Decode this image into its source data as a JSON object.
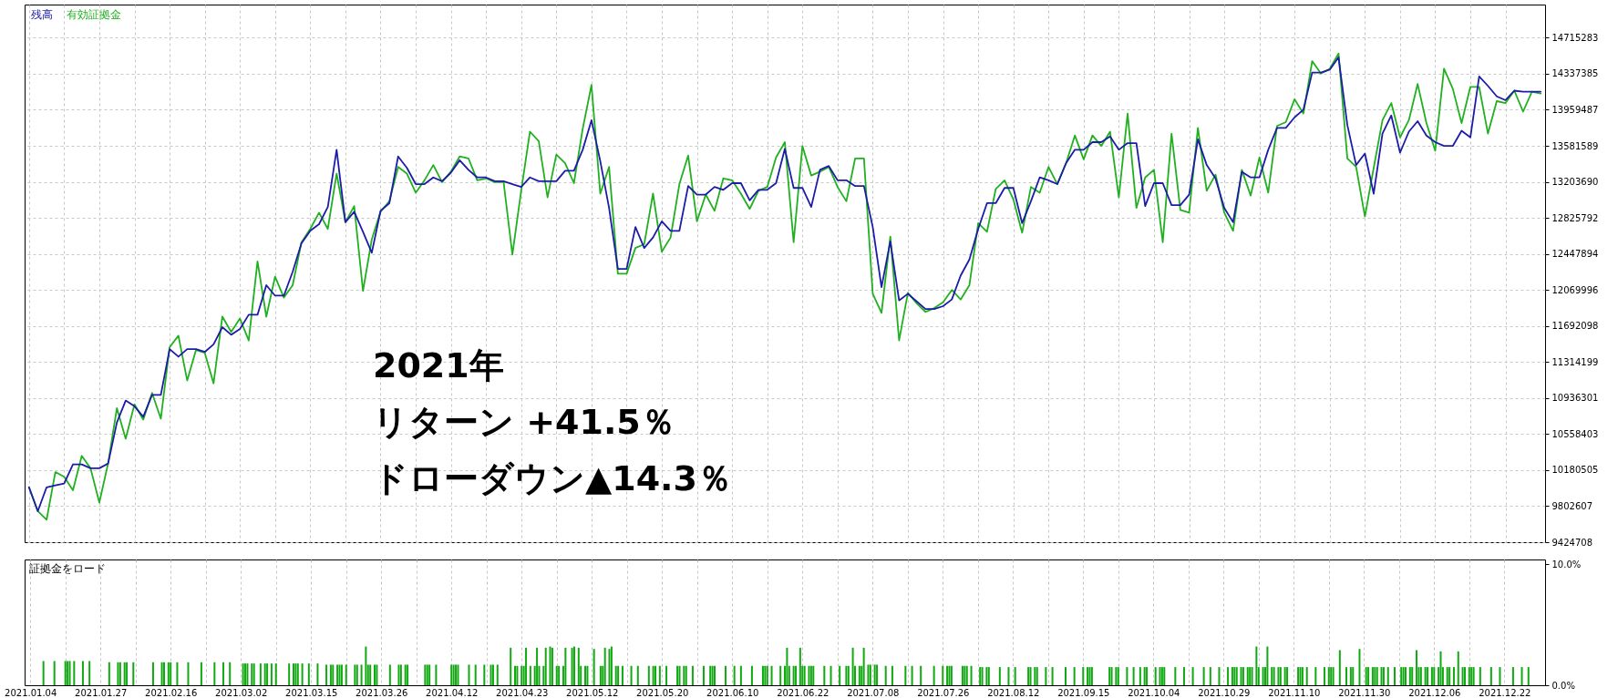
{
  "chart_data": [
    {
      "type": "line",
      "legend": "top left",
      "grid": true,
      "tick_labels": "y",
      "annotations": [
        "2021年",
        "リターン +41.5％",
        "ドローダウン▲14.3％"
      ],
      "categories": [
        "2021.01.04",
        null,
        null,
        null,
        null,
        null,
        null,
        null,
        "2021.01.27",
        null,
        null,
        null,
        null,
        null,
        null,
        null,
        "2021.02.16",
        null,
        null,
        null,
        null,
        null,
        null,
        null,
        "2021.03.02",
        null,
        null,
        null,
        null,
        null,
        null,
        null,
        "2021.03.15",
        null,
        null,
        null,
        null,
        null,
        null,
        null,
        "2021.03.26",
        null,
        null,
        null,
        null,
        null,
        null,
        null,
        "2021.04.12",
        null,
        null,
        null,
        null,
        null,
        null,
        null,
        "2021.04.23",
        null,
        null,
        null,
        null,
        null,
        null,
        null,
        "2021.05.12",
        null,
        null,
        null,
        null,
        null,
        null,
        null,
        "2021.05.20",
        null,
        null,
        null,
        null,
        null,
        null,
        null,
        "2021.06.10",
        null,
        null,
        null,
        null,
        null,
        null,
        null,
        "2021.06.22",
        null,
        null,
        null,
        null,
        null,
        null,
        null,
        "2021.07.08",
        null,
        null,
        null,
        null,
        null,
        null,
        null,
        "2021.07.26",
        null,
        null,
        null,
        null,
        null,
        null,
        null,
        "2021.08.12",
        null,
        null,
        null,
        null,
        null,
        null,
        null,
        "2021.09.15",
        null,
        null,
        null,
        null,
        null,
        null,
        null,
        "2021.10.04",
        null,
        null,
        null,
        null,
        null,
        null,
        null,
        "2021.10.29",
        null,
        null,
        null,
        null,
        null,
        null,
        null,
        "2021.11.10",
        null,
        null,
        null,
        null,
        null,
        null,
        null,
        "2021.11.30",
        null,
        null,
        null,
        null,
        null,
        null,
        null,
        "2021.12.06",
        null,
        null,
        null,
        null,
        null,
        null,
        null,
        "2021.12.22",
        null,
        null,
        null,
        null
      ],
      "ylim": [
        9424708,
        15063000
      ],
      "yticks": [
        9424708,
        9802607,
        10180505,
        10558403,
        10936301,
        11314199,
        11692098,
        12069996,
        12447894,
        12825792,
        13203690,
        13581589,
        13959487,
        14337385,
        14715283
      ],
      "series": [
        {
          "name": "残高",
          "color": "#1c1ca8",
          "values": [
            10000000,
            9750000,
            10000000,
            10020000,
            10040000,
            10240000,
            10240000,
            10200000,
            10200000,
            10250000,
            10680000,
            10910000,
            10850000,
            10740000,
            10970000,
            10970000,
            11450000,
            11370000,
            11450000,
            11450000,
            11420000,
            11500000,
            11680000,
            11600000,
            11660000,
            11810000,
            11810000,
            12120000,
            12010000,
            12010000,
            12260000,
            12560000,
            12690000,
            12760000,
            12940000,
            13540000,
            12780000,
            12890000,
            12680000,
            12460000,
            12900000,
            12980000,
            13470000,
            13350000,
            13180000,
            13180000,
            13250000,
            13210000,
            13300000,
            13430000,
            13330000,
            13250000,
            13250000,
            13210000,
            13210000,
            13180000,
            13150000,
            13250000,
            13210000,
            13210000,
            13210000,
            13320000,
            13320000,
            13540000,
            13850000,
            13420000,
            12930000,
            12290000,
            12290000,
            12730000,
            12510000,
            12620000,
            12790000,
            12690000,
            12690000,
            13160000,
            13070000,
            13070000,
            13150000,
            13120000,
            13190000,
            13190000,
            13010000,
            13120000,
            13120000,
            13190000,
            13550000,
            13140000,
            13140000,
            12940000,
            13330000,
            13370000,
            13220000,
            13220000,
            13160000,
            13160000,
            12730000,
            12100000,
            12580000,
            11960000,
            12030000,
            11950000,
            11870000,
            11870000,
            11900000,
            11970000,
            12220000,
            12390000,
            12710000,
            12980000,
            12980000,
            13140000,
            13140000,
            12770000,
            13000000,
            13250000,
            13220000,
            13180000,
            13400000,
            13540000,
            13540000,
            13620000,
            13620000,
            13680000,
            13540000,
            13610000,
            13610000,
            12950000,
            13190000,
            13190000,
            12960000,
            12960000,
            13070000,
            13650000,
            13380000,
            13240000,
            12930000,
            12780000,
            13310000,
            13250000,
            13250000,
            13540000,
            13770000,
            13770000,
            13880000,
            13960000,
            14350000,
            14350000,
            14380000,
            14510000,
            13800000,
            13380000,
            13500000,
            13080000,
            13710000,
            13900000,
            13510000,
            13730000,
            13840000,
            13690000,
            13620000,
            13580000,
            13580000,
            13740000,
            13670000,
            14310000,
            14210000,
            14100000,
            14060000,
            14160000,
            14150000,
            14150000,
            14150000
          ]
        },
        {
          "name": "有効証拠金",
          "color": "#20b020",
          "values": [
            10000000,
            9750000,
            9660000,
            10160000,
            10110000,
            9970000,
            10330000,
            10200000,
            9840000,
            10250000,
            10830000,
            10510000,
            10870000,
            10710000,
            10990000,
            10720000,
            11470000,
            11590000,
            11120000,
            11440000,
            11410000,
            11090000,
            11790000,
            11630000,
            11770000,
            11540000,
            12370000,
            11790000,
            12210000,
            11990000,
            12120000,
            12570000,
            12710000,
            12880000,
            12710000,
            13290000,
            12780000,
            12950000,
            12060000,
            12600000,
            12890000,
            13000000,
            13360000,
            13290000,
            13090000,
            13220000,
            13380000,
            13200000,
            13310000,
            13470000,
            13450000,
            13220000,
            13240000,
            13200000,
            13200000,
            12440000,
            13110000,
            13730000,
            13630000,
            13040000,
            13490000,
            13400000,
            13190000,
            13760000,
            14220000,
            13080000,
            13360000,
            12240000,
            12240000,
            12510000,
            12550000,
            13080000,
            12470000,
            12620000,
            13180000,
            13480000,
            12790000,
            13070000,
            12900000,
            13240000,
            13220000,
            13080000,
            12920000,
            13110000,
            13150000,
            13460000,
            13620000,
            12570000,
            13580000,
            13270000,
            13310000,
            13360000,
            13150000,
            13000000,
            13450000,
            13450000,
            12030000,
            11830000,
            12630000,
            11540000,
            12040000,
            11930000,
            11840000,
            11880000,
            11940000,
            12070000,
            11970000,
            12120000,
            12770000,
            12680000,
            13130000,
            13220000,
            13020000,
            12670000,
            13150000,
            13090000,
            13360000,
            13180000,
            13400000,
            13690000,
            13440000,
            13690000,
            13580000,
            13730000,
            13040000,
            13920000,
            12930000,
            13250000,
            13330000,
            12570000,
            13710000,
            12910000,
            12880000,
            13770000,
            13110000,
            13280000,
            12880000,
            12690000,
            13330000,
            13060000,
            13460000,
            13090000,
            13790000,
            13830000,
            14070000,
            13920000,
            14470000,
            14340000,
            14390000,
            14550000,
            13450000,
            13360000,
            12840000,
            13350000,
            13850000,
            14030000,
            13670000,
            13850000,
            14230000,
            13820000,
            13530000,
            14390000,
            14180000,
            13820000,
            14200000,
            14200000,
            13710000,
            14050000,
            14030000,
            14160000,
            13940000,
            14150000,
            14130000
          ]
        }
      ]
    },
    {
      "type": "bar",
      "title": "証拠金をロード",
      "color": "#12a812",
      "grid": "x",
      "categories": [
        "2021.01.04",
        null,
        null,
        null,
        null,
        null,
        null,
        null,
        null,
        null,
        null,
        null,
        null,
        null,
        null,
        null,
        null,
        null,
        null,
        null,
        null,
        null,
        null,
        null,
        null,
        null,
        null,
        null,
        null,
        null,
        null,
        null,
        "2021.01.27",
        null,
        null,
        null,
        null,
        null,
        null,
        null,
        null,
        null,
        null,
        null,
        null,
        null,
        null,
        null,
        null,
        null,
        null,
        null,
        null,
        null,
        null,
        null,
        null,
        null,
        null,
        null,
        null,
        null,
        null,
        null,
        "2021.02.16",
        null,
        null,
        null,
        null,
        null,
        null,
        null,
        null,
        null,
        null,
        null,
        null,
        null,
        null,
        null,
        null,
        null,
        null,
        null,
        null,
        null,
        null,
        null,
        null,
        null,
        null,
        null,
        null,
        null,
        null,
        null,
        "2021.03.02",
        null,
        null,
        null,
        null,
        null,
        null,
        null,
        null,
        null,
        null,
        null,
        null,
        null,
        null,
        null,
        null,
        null,
        null,
        null,
        null,
        null,
        null,
        null,
        null,
        null,
        null,
        null,
        null,
        null,
        null,
        null,
        "2021.03.15",
        null,
        null,
        null,
        null,
        null,
        null,
        null,
        null,
        null,
        null,
        null,
        null,
        null,
        null,
        null,
        null,
        null,
        null,
        null,
        null,
        null,
        null,
        null,
        null,
        null,
        null,
        null,
        null,
        null,
        null,
        null,
        "2021.03.26",
        null,
        null,
        null,
        null,
        null,
        null,
        null,
        null,
        null,
        null,
        null,
        null,
        null,
        null,
        null,
        null,
        null,
        null,
        null,
        null,
        null,
        null,
        null,
        null,
        null,
        null,
        null,
        null,
        null,
        null,
        null,
        "2021.04.12",
        null,
        null,
        null,
        null,
        null,
        null,
        null,
        null,
        null,
        null,
        null,
        null,
        null,
        null,
        null,
        null,
        null,
        null,
        null,
        null,
        null,
        null,
        null,
        null,
        null,
        null,
        null,
        null,
        null,
        null,
        null,
        "2021.04.23",
        null,
        null,
        null,
        null,
        null,
        null,
        null,
        null,
        null,
        null,
        null,
        null,
        null,
        null,
        null,
        null,
        null,
        null,
        null,
        null,
        null,
        null,
        null,
        null,
        null,
        null,
        null,
        null,
        null,
        null,
        null,
        "2021.05.12",
        null,
        null,
        null,
        null,
        null,
        null,
        null,
        null,
        null,
        null,
        null,
        null,
        null,
        null,
        null,
        null,
        null,
        null,
        null,
        null,
        null,
        null,
        null,
        null,
        null,
        null,
        null,
        null,
        null,
        null,
        null,
        "2021.05.20",
        null,
        null,
        null,
        null,
        null,
        null,
        null,
        null,
        null,
        null,
        null,
        null,
        null,
        null,
        null,
        null,
        null,
        null,
        null,
        null,
        null,
        null,
        null,
        null,
        null,
        null,
        null,
        null,
        null,
        null,
        null,
        "2021.06.10",
        null,
        null,
        null,
        null,
        null,
        null,
        null,
        null,
        null,
        null,
        null,
        null,
        null,
        null,
        null,
        null,
        null,
        null,
        null,
        null,
        null,
        null,
        null,
        null,
        null,
        null,
        null,
        null,
        null,
        null,
        null,
        "2021.06.22",
        null,
        null,
        null,
        null,
        null,
        null,
        null,
        null,
        null,
        null,
        null,
        null,
        null,
        null,
        null,
        null,
        null,
        null,
        null,
        null,
        null,
        null,
        null,
        null,
        null,
        null,
        null,
        null,
        null,
        null,
        null,
        "2021.07.08",
        null,
        null,
        null,
        null,
        null,
        null,
        null,
        null,
        null,
        null,
        null,
        null,
        null,
        null,
        null,
        null,
        null,
        null,
        null,
        null,
        null,
        null,
        null,
        null,
        null,
        null,
        null,
        null,
        null,
        null,
        null,
        "2021.07.26",
        null,
        null,
        null,
        null,
        null,
        null,
        null,
        null,
        null,
        null,
        null,
        null,
        null,
        null,
        null,
        null,
        null,
        null,
        null,
        null,
        null,
        null,
        null,
        null,
        null,
        null,
        null,
        null,
        null,
        null,
        null,
        "2021.08.12",
        null,
        null,
        null,
        null,
        null,
        null,
        null,
        null,
        null,
        null,
        null,
        null,
        null,
        null,
        null,
        null,
        null,
        null,
        null,
        null,
        null,
        null,
        null,
        null,
        null,
        null,
        null,
        null,
        null,
        null,
        null,
        "2021.09.15",
        null,
        null,
        null,
        null,
        null,
        null,
        null,
        null,
        null,
        null,
        null,
        null,
        null,
        null,
        null,
        null,
        null,
        null,
        null,
        null,
        null,
        null,
        null,
        null,
        null,
        null,
        null,
        null,
        null,
        null,
        null,
        "2021.10.04",
        null,
        null,
        null,
        null,
        null,
        null,
        null,
        null,
        null,
        null,
        null,
        null,
        null,
        null,
        null,
        null,
        null,
        null,
        null,
        null,
        null,
        null,
        null,
        null,
        null,
        null,
        null,
        null,
        null,
        null,
        null,
        "2021.10.29",
        null,
        null,
        null,
        null,
        null,
        null,
        null,
        null,
        null,
        null,
        null,
        null,
        null,
        null,
        null,
        null,
        null,
        null,
        null,
        null,
        null,
        null,
        null,
        null,
        null,
        null,
        null,
        null,
        null,
        null,
        null,
        "2021.11.10",
        null,
        null,
        null,
        null,
        null,
        null,
        null,
        null,
        null,
        null,
        null,
        null,
        null,
        null,
        null,
        null,
        null,
        null,
        null,
        null,
        null,
        null,
        null,
        null,
        null,
        null,
        null,
        null,
        null,
        null,
        null,
        "2021.11.30",
        null,
        null,
        null,
        null,
        null,
        null,
        null,
        null,
        null,
        null,
        null,
        null,
        null,
        null,
        null,
        null,
        null,
        null,
        null,
        null,
        null,
        null,
        null,
        null,
        null,
        null,
        null,
        null,
        null,
        null,
        null,
        "2021.12.06",
        null,
        null,
        null,
        null,
        null,
        null,
        null,
        null,
        null,
        null,
        null,
        null,
        null,
        null,
        null,
        null,
        null,
        null,
        null,
        null,
        null,
        null,
        null,
        null,
        null,
        null,
        null,
        null,
        null,
        null,
        null,
        "2021.12.22",
        null,
        null,
        null,
        null,
        null,
        null,
        null,
        null,
        null,
        null,
        null,
        null,
        null,
        null,
        null,
        null
      ],
      "ylim": [
        0,
        10.4
      ],
      "yticks": [
        {
          "value": 0,
          "label": "0.0%"
        },
        {
          "value": 10,
          "label": "10.0%"
        }
      ],
      "values": [
        null,
        null,
        null,
        null,
        null,
        null,
        2.0,
        null,
        null,
        null,
        null,
        2.0,
        null,
        null,
        null,
        null,
        2.0,
        2.0,
        2.0,
        null,
        2.0,
        null,
        null,
        null,
        2.0,
        null,
        null,
        2.0,
        null,
        null,
        null,
        null,
        null,
        null,
        null,
        null,
        1.9,
        null,
        null,
        null,
        1.9,
        1.9,
        null,
        1.9,
        1.9,
        null,
        null,
        1.9,
        null,
        null,
        null,
        null,
        null,
        null,
        null,
        null,
        1.9,
        null,
        null,
        null,
        1.9,
        1.9,
        null,
        1.9,
        1.9,
        null,
        null,
        1.9,
        null,
        null,
        null,
        null,
        1.9,
        null,
        null,
        null,
        null,
        null,
        1.9,
        null,
        null,
        null,
        null,
        null,
        1.9,
        null,
        null,
        null,
        1.9,
        null,
        null,
        1.9,
        null,
        null,
        null,
        null,
        null,
        1.8,
        1.8,
        1.8,
        null,
        1.8,
        1.8,
        null,
        null,
        1.8,
        null,
        1.8,
        1.8,
        null,
        1.8,
        null,
        1.8,
        null,
        null,
        null,
        null,
        null,
        1.8,
        null,
        1.8,
        1.8,
        1.8,
        null,
        1.8,
        null,
        null,
        1.8,
        null,
        null,
        null,
        1.8,
        null,
        null,
        null,
        1.7,
        null,
        1.7,
        1.7,
        null,
        1.7,
        1.7,
        1.7,
        null,
        1.7,
        null,
        null,
        null,
        1.7,
        1.7,
        null,
        1.7,
        null,
        3.2,
        1.7,
        1.7,
        null,
        1.7,
        1.7,
        null,
        null,
        null,
        null,
        null,
        1.7,
        null,
        null,
        null,
        1.7,
        1.7,
        null,
        1.7,
        1.7,
        null,
        null,
        null,
        null,
        null,
        null,
        null,
        1.7,
        1.7,
        1.7,
        null,
        null,
        1.7,
        null,
        null,
        null,
        null,
        null,
        null,
        1.7,
        1.7,
        1.7,
        1.7,
        null,
        null,
        null,
        null,
        1.7,
        null,
        null,
        1.7,
        null,
        null,
        null,
        1.7,
        null,
        null,
        1.7,
        1.7,
        null,
        1.7,
        null,
        null,
        null,
        null,
        null,
        3.1,
        null,
        1.6,
        1.6,
        null,
        1.6,
        1.6,
        3.1,
        null,
        1.6,
        null,
        1.6,
        3.1,
        1.6,
        null,
        1.6,
        3.1,
        null,
        3.2,
        3.1,
        null,
        1.6,
        1.6,
        null,
        1.6,
        3.1,
        null,
        null,
        3.1,
        3.2,
        null,
        3.1,
        1.6,
        null,
        1.6,
        1.6,
        null,
        null,
        3.0,
        null,
        null,
        1.6,
        1.6,
        3.1,
        null,
        3.0,
        3.2,
        null,
        1.6,
        1.6,
        null,
        1.6,
        null,
        null,
        null,
        1.6,
        null,
        null,
        1.6,
        null,
        null,
        null,
        null,
        1.6,
        null,
        1.6,
        1.6,
        null,
        1.6,
        null,
        null,
        1.6,
        null,
        null,
        null,
        null,
        1.6,
        1.6,
        null,
        1.6,
        1.6,
        null,
        null,
        1.6,
        null,
        null,
        null,
        null,
        1.6,
        null,
        null,
        1.6,
        1.6,
        1.6,
        null,
        null,
        null,
        null,
        1.6,
        null,
        null,
        null,
        1.6,
        null,
        null,
        1.6,
        null,
        null,
        null,
        null,
        1.6,
        null,
        null,
        null,
        null,
        1.6,
        1.6,
        1.6,
        null,
        1.6,
        null,
        null,
        null,
        1.6,
        null,
        1.6,
        3.1,
        1.6,
        null,
        1.6,
        1.6,
        null,
        3.1,
        1.6,
        1.6,
        null,
        1.6,
        1.6,
        1.6,
        null,
        null,
        null,
        null,
        1.6,
        null,
        null,
        1.6,
        null,
        null,
        null,
        1.6,
        null,
        null,
        1.6,
        1.6,
        null,
        3.1,
        1.6,
        null,
        1.6,
        1.6,
        3.1,
        null,
        1.7,
        1.7,
        null,
        1.7,
        1.7,
        null,
        null,
        null,
        1.6,
        null,
        null,
        1.6,
        null,
        null,
        null,
        null,
        null,
        1.6,
        null,
        null,
        1.6,
        null,
        null,
        null,
        1.6,
        null,
        null,
        null,
        null,
        null,
        1.6,
        null,
        null,
        null,
        1.6,
        null,
        1.6,
        1.6,
        1.6,
        null,
        null,
        null,
        null,
        1.6,
        1.6,
        1.6,
        null,
        1.6,
        null,
        null,
        null,
        1.5,
        1.5,
        null,
        1.5,
        1.5,
        null,
        null,
        null,
        null,
        1.5,
        null,
        null,
        null,
        1.5,
        null,
        null,
        1.5,
        null,
        null,
        null,
        null,
        null,
        1.5,
        1.5,
        null,
        1.5,
        1.5,
        null,
        null,
        null,
        1.5,
        null,
        null,
        1.5,
        null,
        null,
        null,
        null,
        null,
        1.5,
        null,
        null,
        null,
        1.5,
        null,
        null,
        null,
        1.5,
        null,
        1.5,
        1.5,
        1.5,
        null,
        null,
        null,
        null,
        null,
        null,
        null,
        1.5,
        1.5,
        null,
        1.5,
        1.5,
        null,
        null,
        null,
        1.5,
        null,
        null,
        1.5,
        null,
        null,
        1.5,
        null,
        1.5,
        1.5,
        null,
        null,
        null,
        1.5,
        null,
        1.5,
        1.5,
        1.5,
        null,
        null,
        null,
        null,
        1.5,
        null,
        null,
        null,
        1.5,
        null,
        null,
        null,
        1.5,
        null,
        null,
        null,
        null,
        1.5,
        null,
        null,
        1.5,
        null,
        null,
        null,
        1.5,
        null,
        null,
        null,
        1.5,
        null,
        1.5,
        1.5,
        1.5,
        null,
        1.5,
        1.5,
        null,
        1.5,
        1.5,
        1.5,
        null,
        3.2,
        1.5,
        null,
        1.5,
        1.5,
        3.2,
        null,
        1.5,
        1.5,
        null,
        1.5,
        1.5,
        null,
        1.5,
        1.5,
        null,
        null,
        null,
        null,
        1.5,
        1.5,
        1.5,
        null,
        1.5,
        null,
        null,
        null,
        1.5,
        null,
        null,
        null,
        1.5,
        null,
        1.5,
        1.5,
        1.5,
        null,
        null,
        2.9,
        null,
        null,
        1.5,
        null,
        1.5,
        1.5,
        null,
        null,
        3.0,
        null,
        null,
        1.5,
        1.5,
        null,
        1.5,
        1.5,
        1.5,
        null,
        1.5,
        1.5,
        null,
        1.5,
        null,
        null,
        1.5,
        null,
        null,
        1.5,
        1.5,
        1.5,
        null,
        1.5,
        1.5,
        null,
        2.9,
        1.5,
        1.5,
        null,
        1.5,
        1.5,
        null,
        1.5,
        1.5,
        null,
        1.5,
        2.8,
        1.5,
        null,
        1.5,
        1.5,
        null,
        1.5,
        null,
        2.8,
        null,
        1.5,
        1.5,
        null,
        1.5,
        1.5,
        1.5,
        null,
        null,
        1.5,
        null,
        null,
        null,
        null,
        1.5,
        null,
        null,
        null,
        1.5,
        null,
        null,
        null,
        null,
        null,
        1.5,
        null,
        null,
        null,
        1.5,
        null,
        null,
        1.5,
        null,
        null,
        null,
        null,
        null
      ]
    }
  ]
}
